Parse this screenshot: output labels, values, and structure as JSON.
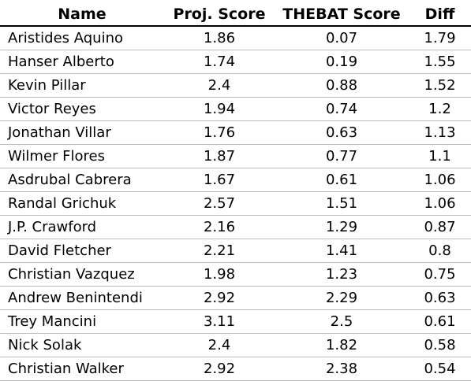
{
  "table": {
    "headers": {
      "name": "Name",
      "proj": "Proj. Score",
      "thebat": "THEBAT Score",
      "diff": "Diff"
    },
    "rows": [
      {
        "name": "Aristides Aquino",
        "proj": "1.86",
        "thebat": "0.07",
        "diff": "1.79"
      },
      {
        "name": "Hanser Alberto",
        "proj": "1.74",
        "thebat": "0.19",
        "diff": "1.55"
      },
      {
        "name": "Kevin Pillar",
        "proj": "2.4",
        "thebat": "0.88",
        "diff": "1.52"
      },
      {
        "name": "Victor Reyes",
        "proj": "1.94",
        "thebat": "0.74",
        "diff": "1.2"
      },
      {
        "name": "Jonathan Villar",
        "proj": "1.76",
        "thebat": "0.63",
        "diff": "1.13"
      },
      {
        "name": "Wilmer Flores",
        "proj": "1.87",
        "thebat": "0.77",
        "diff": "1.1"
      },
      {
        "name": "Asdrubal Cabrera",
        "proj": "1.67",
        "thebat": "0.61",
        "diff": "1.06"
      },
      {
        "name": "Randal Grichuk",
        "proj": "2.57",
        "thebat": "1.51",
        "diff": "1.06"
      },
      {
        "name": "J.P. Crawford",
        "proj": "2.16",
        "thebat": "1.29",
        "diff": "0.87"
      },
      {
        "name": "David Fletcher",
        "proj": "2.21",
        "thebat": "1.41",
        "diff": "0.8"
      },
      {
        "name": "Christian Vazquez",
        "proj": "1.98",
        "thebat": "1.23",
        "diff": "0.75"
      },
      {
        "name": "Andrew Benintendi",
        "proj": "2.92",
        "thebat": "2.29",
        "diff": "0.63"
      },
      {
        "name": "Trey Mancini",
        "proj": "3.11",
        "thebat": "2.5",
        "diff": "0.61"
      },
      {
        "name": "Nick Solak",
        "proj": "2.4",
        "thebat": "1.82",
        "diff": "0.58"
      },
      {
        "name": "Christian Walker",
        "proj": "2.92",
        "thebat": "2.38",
        "diff": "0.54"
      }
    ]
  }
}
